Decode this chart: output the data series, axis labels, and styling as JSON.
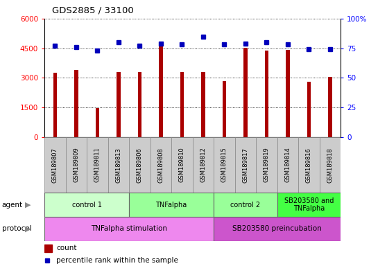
{
  "title": "GDS2885 / 33100",
  "samples": [
    "GSM189807",
    "GSM189809",
    "GSM189811",
    "GSM189813",
    "GSM189806",
    "GSM189808",
    "GSM189810",
    "GSM189812",
    "GSM189815",
    "GSM189817",
    "GSM189819",
    "GSM189814",
    "GSM189816",
    "GSM189818"
  ],
  "counts": [
    3250,
    3380,
    1480,
    3280,
    3280,
    4650,
    3280,
    3280,
    2820,
    4520,
    4380,
    4420,
    2800,
    3060
  ],
  "percentiles": [
    77,
    76,
    73,
    80,
    77,
    79,
    78,
    85,
    78,
    79,
    80,
    78,
    74,
    74
  ],
  "bar_color": "#aa0000",
  "dot_color": "#0000bb",
  "ylim_left": [
    0,
    6000
  ],
  "ylim_right": [
    0,
    100
  ],
  "yticks_left": [
    0,
    1500,
    3000,
    4500,
    6000
  ],
  "yticks_right": [
    0,
    25,
    50,
    75,
    100
  ],
  "agent_groups": [
    {
      "label": "control 1",
      "start": 0,
      "end": 4,
      "color": "#ccffcc"
    },
    {
      "label": "TNFalpha",
      "start": 4,
      "end": 8,
      "color": "#99ff99"
    },
    {
      "label": "control 2",
      "start": 8,
      "end": 11,
      "color": "#99ff99"
    },
    {
      "label": "SB203580 and\nTNFalpha",
      "start": 11,
      "end": 14,
      "color": "#44ff44"
    }
  ],
  "protocol_groups": [
    {
      "label": "TNFalpha stimulation",
      "start": 0,
      "end": 8,
      "color": "#ee88ee"
    },
    {
      "label": "SB203580 preincubation",
      "start": 8,
      "end": 14,
      "color": "#cc55cc"
    }
  ],
  "sample_bg": "#cccccc",
  "legend_count_color": "#aa0000",
  "legend_dot_color": "#0000bb",
  "bg_color": "#ffffff"
}
